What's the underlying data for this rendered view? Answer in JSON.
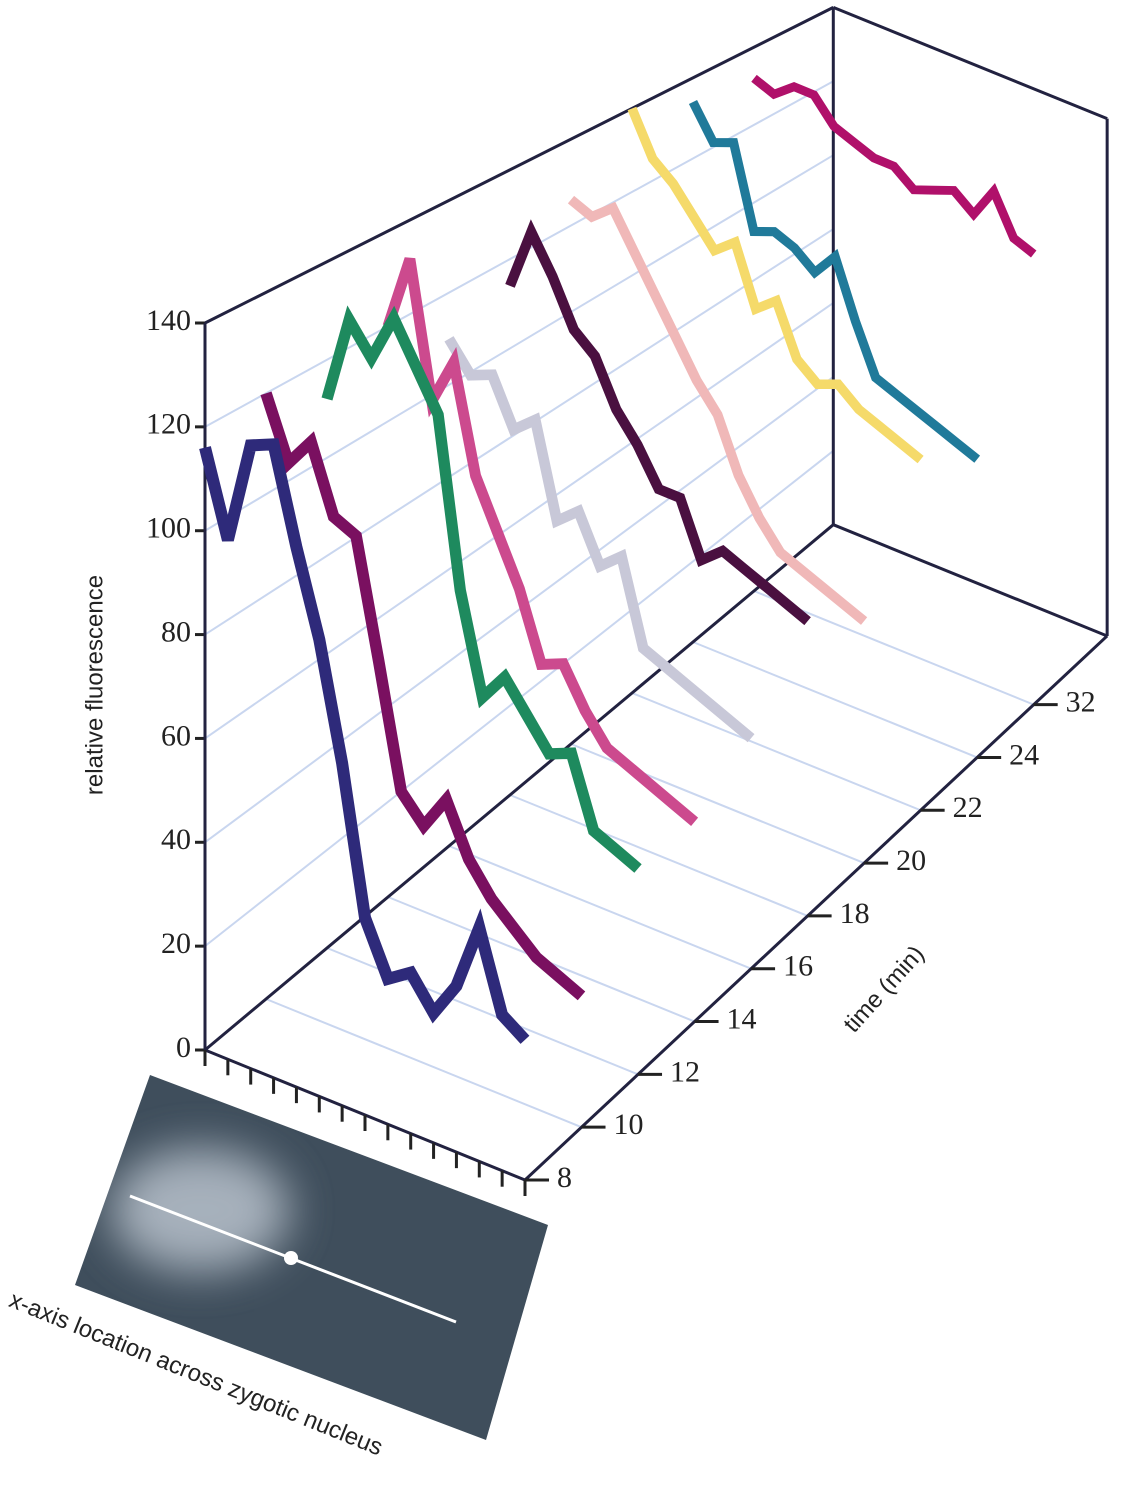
{
  "chart_data": {
    "type": "waterfall3d",
    "y_label": "relative fluorescence",
    "z_label": "time (min)",
    "x_label": "x-axis location across zygotic nucleus",
    "ylim": [
      0,
      140
    ],
    "yticks": [
      0,
      20,
      40,
      60,
      80,
      100,
      120,
      140
    ],
    "z_categories": [
      8,
      10,
      12,
      14,
      16,
      18,
      20,
      22,
      24,
      32
    ],
    "series": [
      {
        "color": "#2e2a7a",
        "values": [
          116,
          100,
          120,
          122,
          104,
          88,
          66,
          38,
          28,
          31,
          25,
          32,
          45,
          30,
          27
        ]
      },
      {
        "color": "#7a1060",
        "values": [
          120,
          108,
          114,
          101,
          99,
          76,
          52,
          47,
          54,
          44,
          38,
          34,
          30,
          28,
          26
        ]
      },
      {
        "color": "#1e8a5e",
        "values": [
          112,
          130,
          124,
          134,
          126,
          118,
          84,
          64,
          70,
          64,
          58,
          60,
          46,
          44,
          42
        ]
      },
      {
        "color": "#cc4a8e",
        "values": [
          120,
          136,
          108,
          118,
          96,
          86,
          76,
          62,
          64,
          56,
          50,
          48,
          46,
          44,
          42
        ]
      },
      {
        "color": "#c8c8d8",
        "values": [
          110,
          104,
          106,
          96,
          100,
          80,
          84,
          74,
          78,
          60,
          58,
          56,
          54,
          52,
          50
        ]
      },
      {
        "color": "#4a1040",
        "values": [
          114,
          128,
          120,
          110,
          106,
          96,
          90,
          82,
          82,
          70,
          74,
          72,
          70,
          68,
          66
        ]
      },
      {
        "color": "#f0b8b8",
        "values": [
          126,
          124,
          128,
          120,
          112,
          104,
          96,
          90,
          78,
          70,
          64,
          62,
          60,
          58,
          56
        ]
      },
      {
        "color": "#f5da6a",
        "values": [
          140,
          130,
          126,
          120,
          114,
          118,
          104,
          108,
          96,
          92,
          94,
          90,
          88,
          86,
          84
        ]
      },
      {
        "color": "#207a9a",
        "values": [
          134,
          126,
          128,
          108,
          110,
          108,
          104,
          110,
          96,
          84,
          82,
          80,
          78,
          76,
          74
        ]
      },
      {
        "color": "#b0106a",
        "values": [
          132,
          130,
          134,
          134,
          128,
          126,
          124,
          124,
          120,
          122,
          124,
          120,
          128,
          118,
          116
        ]
      }
    ]
  }
}
